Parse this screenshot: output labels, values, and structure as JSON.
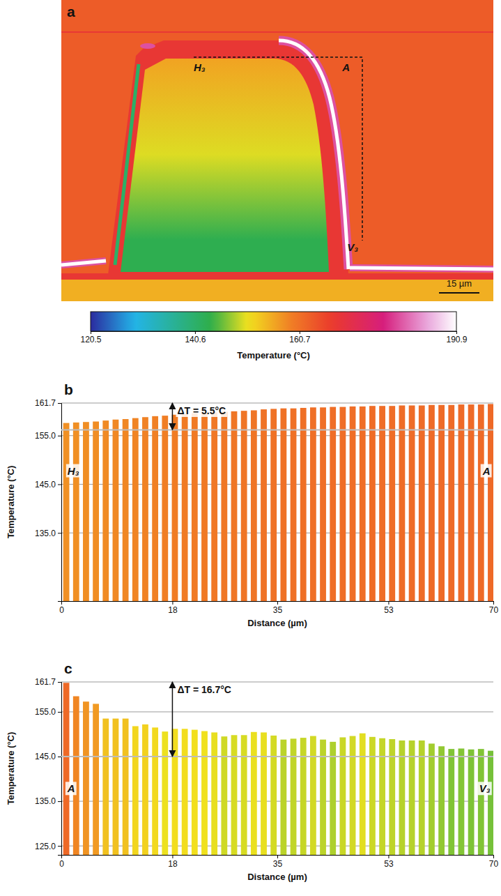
{
  "chart_data": [
    {
      "type": "heatmap",
      "panel": "a",
      "values": [
        163,
        156,
        150,
        143,
        168,
        190.9,
        180,
        141,
        155
      ],
      "colorbar": {
        "range": [
          120.5,
          190.9
        ],
        "ticks": [
          120.5,
          140.6,
          160.7,
          190.9
        ],
        "label": "Temperature (°C)"
      },
      "annotations": [
        {
          "text": "H₃"
        },
        {
          "text": "A"
        },
        {
          "text": "V₃"
        }
      ],
      "scale_bar": "15 µm"
    },
    {
      "type": "bar",
      "panel": "b",
      "x": [
        0.8,
        2.4,
        4.0,
        5.6,
        7.2,
        8.8,
        10.4,
        12.0,
        13.6,
        15.2,
        16.8,
        18.4,
        20.0,
        21.6,
        23.2,
        24.8,
        26.4,
        28.0,
        29.6,
        31.2,
        32.8,
        34.4,
        36.0,
        37.6,
        39.2,
        40.8,
        42.4,
        44.0,
        45.6,
        47.2,
        48.8,
        50.4,
        52.0,
        53.6,
        55.2,
        56.8,
        58.4,
        60.0,
        61.6,
        63.2,
        64.8,
        66.4,
        68.0,
        69.6
      ],
      "values": [
        157.6,
        157.7,
        157.8,
        157.9,
        158.1,
        158.3,
        158.4,
        158.6,
        158.8,
        159.0,
        159.1,
        159.3,
        159.4,
        159.6,
        159.7,
        159.8,
        159.9,
        160.0,
        160.1,
        160.2,
        160.4,
        160.5,
        160.6,
        160.6,
        160.7,
        160.8,
        160.8,
        160.9,
        160.9,
        161.0,
        161.0,
        161.1,
        161.1,
        161.1,
        161.2,
        161.2,
        161.2,
        161.3,
        161.3,
        161.3,
        161.4,
        161.4,
        161.4,
        161.5
      ],
      "xlim": [
        0,
        70
      ],
      "xticks": [
        0,
        18,
        35,
        53,
        70
      ],
      "ylim": [
        121,
        161.7
      ],
      "yticks": [
        {
          "value": 135,
          "label": "135.0"
        },
        {
          "value": 145,
          "label": "145.0"
        },
        {
          "value": 155,
          "label": "155.0"
        },
        161.7
      ],
      "x_label": "Distance (µm)",
      "y_label": "Temperature (°C)",
      "grid": true,
      "annotations": [
        {
          "text": "ΔT = 5.5°C",
          "x": 18,
          "y": [
            161.7,
            156.2
          ]
        },
        {
          "text": "H₃",
          "x": 1,
          "y": 147
        },
        {
          "text": "A",
          "x": 69.5,
          "y": 147
        }
      ]
    },
    {
      "type": "bar",
      "panel": "c",
      "x": [
        0.8,
        2.4,
        4.0,
        5.6,
        7.2,
        8.8,
        10.4,
        12.0,
        13.6,
        15.2,
        16.8,
        18.4,
        20.0,
        21.6,
        23.2,
        24.8,
        26.4,
        28.0,
        29.6,
        31.2,
        32.8,
        34.4,
        36.0,
        37.6,
        39.2,
        40.8,
        42.4,
        44.0,
        45.6,
        47.2,
        48.8,
        50.4,
        52.0,
        53.6,
        55.2,
        56.8,
        58.4,
        60.0,
        61.6,
        63.2,
        64.8,
        66.4,
        68.0,
        69.6
      ],
      "values": [
        161.5,
        158.5,
        157.3,
        156.8,
        153.5,
        153.5,
        153.5,
        151.8,
        152.2,
        151.5,
        150.6,
        151.2,
        151.2,
        151.0,
        150.7,
        150.4,
        149.5,
        149.8,
        149.8,
        150.5,
        150.4,
        149.7,
        148.8,
        149.0,
        149.2,
        149.6,
        148.8,
        148.3,
        149.3,
        149.6,
        150.2,
        149.4,
        149.1,
        148.9,
        148.6,
        148.6,
        148.6,
        147.9,
        147.3,
        146.7,
        146.8,
        146.6,
        146.7,
        146.3
      ],
      "xlim": [
        0,
        70
      ],
      "xticks": [
        0,
        18,
        35,
        53,
        70
      ],
      "ylim": [
        123,
        161.7
      ],
      "yticks": [
        {
          "value": 125,
          "label": "125.0"
        },
        {
          "value": 135,
          "label": "135.0"
        },
        {
          "value": 145,
          "label": "145.0"
        },
        {
          "value": 155,
          "label": "155.0"
        },
        161.7
      ],
      "x_label": "Distance (µm)",
      "y_label": "Temperature (°C)",
      "grid": true,
      "annotations": [
        {
          "text": "ΔT = 16.7°C",
          "x": 18,
          "y": [
            161.7,
            145.0
          ]
        },
        {
          "text": "A",
          "x": 1,
          "y": 137
        },
        {
          "text": "V₃",
          "x": 69.5,
          "y": 137
        }
      ]
    }
  ]
}
